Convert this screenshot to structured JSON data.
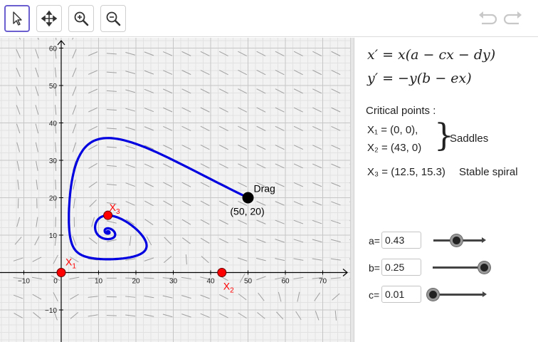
{
  "toolbar": {
    "tools": [
      "move-tool",
      "move-graphics-view-tool",
      "zoom-in-tool",
      "zoom-out-tool"
    ],
    "history": [
      "undo",
      "redo"
    ]
  },
  "graph": {
    "x_ticks": [
      "−10",
      "0",
      "10",
      "20",
      "30",
      "40",
      "50",
      "60",
      "70"
    ],
    "y_ticks": [
      "−10",
      "10",
      "20",
      "30",
      "40",
      "50",
      "60"
    ],
    "drag_label": "Drag",
    "drag_point_text": "(50, 20)",
    "point_labels": [
      {
        "id": "X1",
        "base": "X",
        "sub": "1"
      },
      {
        "id": "X2",
        "base": "X",
        "sub": "2"
      },
      {
        "id": "X3",
        "base": "X",
        "sub": "3"
      }
    ],
    "colors": {
      "trajectory": "#0000e0",
      "critical": "#ff0000",
      "axis": "#000000",
      "grid": "#c8c8c8"
    }
  },
  "panel": {
    "eq1": "x′ = x(a − cx − dy)",
    "eq2": "y′ = −y(b − ex)",
    "critical_title": "Critical points :",
    "x1_text": "X₁ = (0, 0),",
    "x2_text": "X₂ = (43, 0)",
    "saddle_label": "Saddles",
    "x3_text": "X₃ = (12.5, 15.3)",
    "x3_type": "Stable spiral"
  },
  "sliders": [
    {
      "name": "a",
      "label": "a=",
      "value": "0.43",
      "fraction": 0.45
    },
    {
      "name": "b",
      "label": "b=",
      "value": "0.25",
      "fraction": 1.0
    },
    {
      "name": "c",
      "label": "c=",
      "value": "0.01",
      "fraction": 0.0
    }
  ]
}
